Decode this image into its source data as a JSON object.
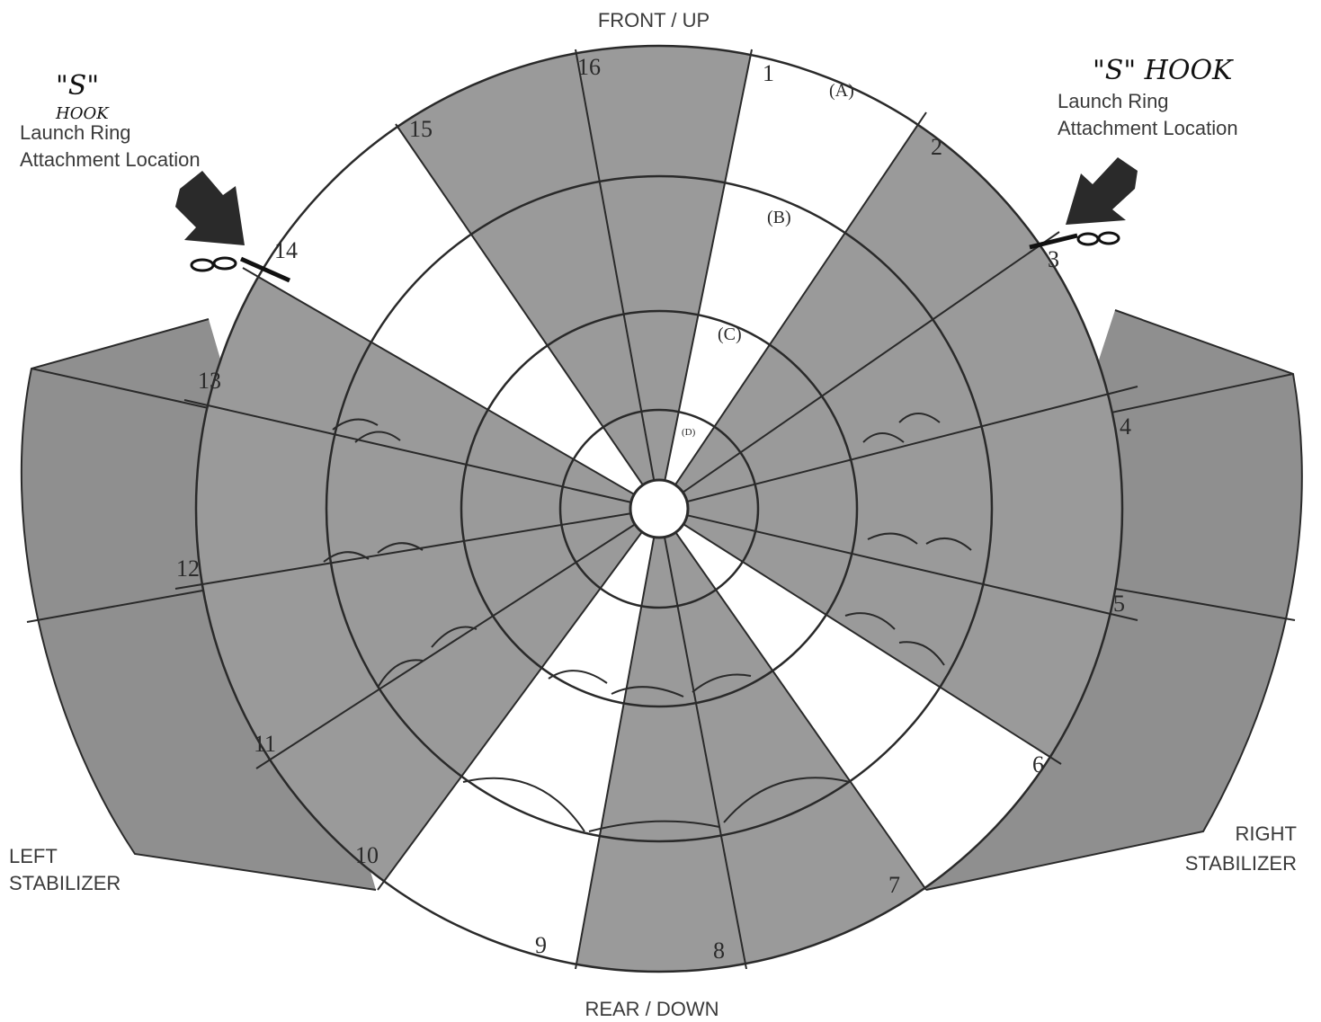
{
  "orientation": {
    "top": "FRONT / UP",
    "bottom": "REAR / DOWN",
    "left_line1": "LEFT",
    "left_line2": "STABILIZER",
    "right_line1": "RIGHT",
    "right_line2": "STABILIZER"
  },
  "left_hook": {
    "handwritten1": "\"S\"",
    "handwritten2": "HOOK",
    "label_line1": "Launch Ring",
    "label_line2": "Attachment Location"
  },
  "right_hook": {
    "handwritten": "\"S\" HOOK",
    "label_line1": "Launch Ring",
    "label_line2": "Attachment Location"
  },
  "rings": [
    "(A)",
    "(B)",
    "(C)",
    "(D)"
  ],
  "gores": [
    "1",
    "2",
    "3",
    "4",
    "5",
    "6",
    "7",
    "8",
    "9",
    "10",
    "11",
    "12",
    "13",
    "14",
    "15",
    "16"
  ],
  "colors": {
    "ink": "#2a2a2a",
    "shade": "#9a9a9a",
    "paper": "#ffffff"
  }
}
